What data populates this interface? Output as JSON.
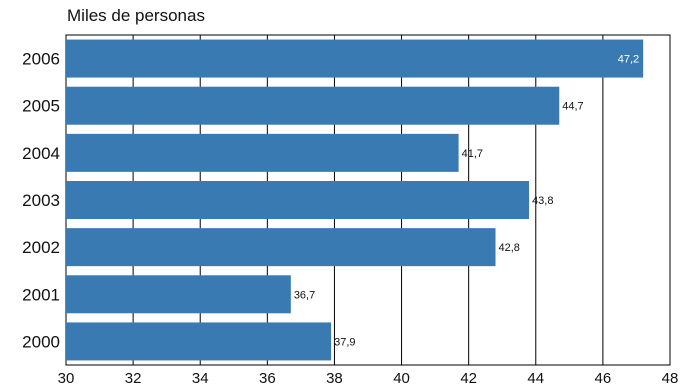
{
  "chart_data": {
    "type": "bar",
    "orientation": "horizontal",
    "title": "Miles de personas",
    "categories": [
      "2006",
      "2005",
      "2004",
      "2003",
      "2002",
      "2001",
      "2000"
    ],
    "values": [
      47.2,
      44.7,
      41.7,
      43.8,
      42.8,
      36.7,
      37.9
    ],
    "data_labels": [
      "47,2",
      "44,7",
      "41,7",
      "43,8",
      "42,8",
      "36,7",
      "37,9"
    ],
    "xlim": [
      30,
      48
    ],
    "xticks": [
      "30",
      "32",
      "34",
      "36",
      "38",
      "40",
      "42",
      "44",
      "46",
      "48"
    ],
    "xlabel": "",
    "ylabel": "",
    "grid": "vertical",
    "legend": "none",
    "colors": {
      "bar": "#3a7ab3",
      "grid": "#000000",
      "label_inside": "#ffffff",
      "label_outside": "#111111"
    }
  }
}
